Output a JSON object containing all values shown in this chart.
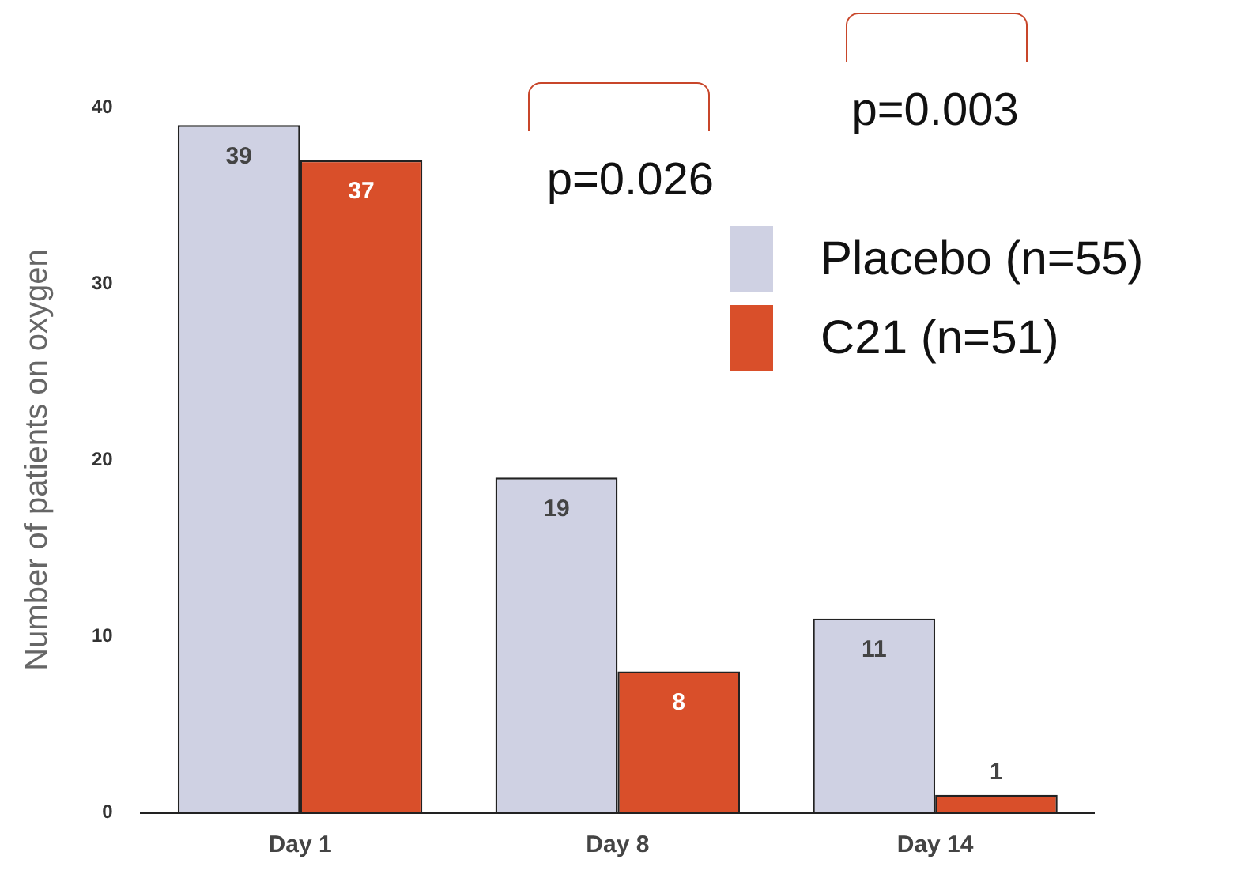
{
  "chart_data": {
    "type": "bar",
    "ylabel": "Number of patients on oxygen",
    "categories": [
      "Day 1",
      "Day 8",
      "Day 14"
    ],
    "series": [
      {
        "name": "Placebo (n=55)",
        "color": "#cfd1e3",
        "values": [
          39,
          19,
          11
        ]
      },
      {
        "name": "C21 (n=51)",
        "color": "#d94f2a",
        "values": [
          37,
          8,
          1
        ]
      }
    ],
    "ylim": [
      0,
      40
    ],
    "yticks": [
      0,
      10,
      20,
      30,
      40
    ],
    "grid": false,
    "legend": "top right",
    "data_labels": true,
    "annotations": [
      "p=0.026",
      "p=0.003"
    ]
  }
}
